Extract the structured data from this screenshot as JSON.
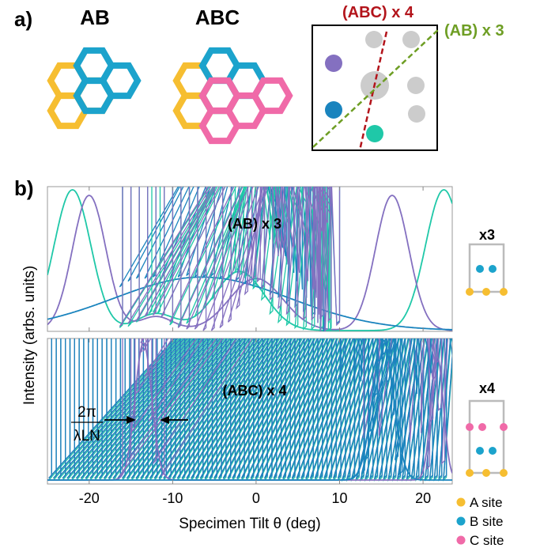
{
  "panel_a": {
    "label": "a)",
    "ab_title": "AB",
    "abc_title": "ABC",
    "box_label_abc": "(ABC) x 4",
    "box_label_ab": "(AB) x 3"
  },
  "panel_b": {
    "label": "b)",
    "top_annotation": "(AB) x 3",
    "bottom_annotation": "(ABC) x 4",
    "width_numerator": "2π",
    "width_denominator": "λLN",
    "x3_label": "x3",
    "x4_label": "x4"
  },
  "legend": {
    "items": [
      {
        "label": "A site",
        "color": "#f6be31"
      },
      {
        "label": "B site",
        "color": "#1ca3cc"
      },
      {
        "label": "C site",
        "color": "#f06aa8"
      }
    ]
  },
  "colors": {
    "A": "#f6be31",
    "B": "#1ca3cc",
    "C": "#f06aa8",
    "purple": "#8470c0",
    "teal": "#1fc8a8",
    "blue": "#1a84be",
    "red_dash": "#b3141b",
    "green_dash": "#6e9e24",
    "gray": "#cccccc"
  },
  "chart_data": {
    "type": "line",
    "xlabel": "Specimen Tilt θ (deg)",
    "ylabel": "Intensity (arbs. units)",
    "xlim": [
      -25,
      23.5
    ],
    "xticks": [
      -20,
      -10,
      0,
      10,
      20
    ],
    "tick_labels": [
      "-20",
      "-10",
      "0",
      "10",
      "20"
    ],
    "panels": [
      {
        "name": "(AB) x 3",
        "ylim": [
          0,
          1
        ],
        "curves": [
          {
            "color": "teal",
            "peaks": [
              [
                -22.0,
                1.0,
                2.2
              ],
              [
                -12.0,
                0.12,
                2.3
              ],
              [
                -2.0,
                0.42,
                3.0
              ],
              [
                22.5,
                1.0,
                2.2
              ]
            ]
          },
          {
            "color": "purple",
            "peaks": [
              [
                -20.0,
                0.96,
                2.0
              ],
              [
                -12.0,
                0.1,
                2.0
              ],
              [
                0.0,
                0.37,
                3.2
              ],
              [
                16.3,
                0.96,
                2.0
              ]
            ]
          },
          {
            "color": "blue",
            "peaks": [
              [
                -6.5,
                0.38,
                10.5
              ]
            ]
          }
        ],
        "points": [
          {
            "color": "blue",
            "x": [
              -16,
              -15,
              -14,
              -13,
              -12,
              -11,
              -10,
              -9,
              -8,
              -7,
              -6,
              -5,
              -4,
              -3,
              -2,
              -1,
              0,
              1,
              2,
              3,
              4,
              5,
              6,
              7,
              8,
              9,
              10
            ],
            "y": [
              0.31,
              0.35,
              0.37,
              0.37,
              0.38,
              0.38,
              0.37,
              0.38,
              0.39,
              0.38,
              0.38,
              0.39,
              0.37,
              0.38,
              0.36,
              0.34,
              0.32,
              0.31,
              0.26,
              0.24,
              0.2,
              0.17,
              0.14,
              0.11,
              0.09,
              0.07,
              0.05
            ]
          },
          {
            "color": "teal",
            "x": [
              -16,
              -15,
              -14,
              -13,
              -12.5,
              -12,
              -11.5,
              -11,
              -10,
              -9,
              -8,
              -7,
              -6,
              -5,
              -4,
              -3,
              -2.5,
              -2,
              -1.5,
              -1,
              0,
              1,
              2,
              3,
              4,
              5,
              6,
              7,
              8,
              9
            ],
            "y": [
              0.02,
              0.03,
              0.06,
              0.1,
              0.12,
              0.13,
              0.12,
              0.1,
              0.04,
              0.03,
              0.05,
              0.1,
              0.16,
              0.22,
              0.3,
              0.37,
              0.4,
              0.43,
              0.4,
              0.38,
              0.3,
              0.22,
              0.12,
              0.06,
              0.04,
              0.02,
              0.01,
              0.01,
              0.01,
              0.0
            ]
          },
          {
            "color": "purple",
            "x": [
              -16,
              -15,
              -14,
              -13,
              -12,
              -11,
              -10,
              -9,
              -8,
              -7,
              -6,
              -5,
              -4,
              -3,
              -2,
              -1,
              -0.5,
              0,
              0.5,
              1,
              2,
              3,
              4,
              5,
              6,
              7,
              8,
              9,
              10
            ],
            "y": [
              0.03,
              0.05,
              0.07,
              0.1,
              0.11,
              0.1,
              0.06,
              0.02,
              0.01,
              0.01,
              0.0,
              0.0,
              0.02,
              0.06,
              0.16,
              0.26,
              0.33,
              0.37,
              0.35,
              0.3,
              0.22,
              0.16,
              0.12,
              0.1,
              0.08,
              0.08,
              0.09,
              0.07,
              0.04
            ]
          }
        ]
      },
      {
        "name": "(ABC) x 4",
        "ylim": [
          0,
          1
        ],
        "curves": [
          {
            "color": "purple",
            "peaks": [
              [
                -13.5,
                0.98,
                1.0
              ],
              [
                21.7,
                0.88,
                0.75
              ]
            ]
          },
          {
            "color": "blue",
            "peaks": [
              [
                15.2,
                1.0,
                1.25
              ]
            ]
          }
        ],
        "points": [
          {
            "color": "purple",
            "x": [
              -16,
              -15,
              -14.5,
              -14,
              -13.7,
              -13.5,
              -13.2,
              -13,
              -12.5,
              -12,
              -11
            ],
            "y": [
              0.03,
              0.14,
              0.35,
              0.62,
              0.9,
              0.98,
              0.92,
              0.74,
              0.42,
              0.12,
              0.03
            ]
          },
          {
            "color": "purple",
            "x": [
              20.8,
              21.2,
              21.5,
              21.8,
              22.2,
              22.6
            ],
            "y": [
              0.08,
              0.42,
              0.72,
              0.83,
              0.5,
              0.12
            ]
          },
          {
            "color": "blue",
            "x": [
              13,
              13.5,
              14,
              14.5,
              15,
              15.3,
              15.6,
              16,
              16.5,
              17,
              17.5
            ],
            "y": [
              0.05,
              0.15,
              0.35,
              0.6,
              0.85,
              1.0,
              0.9,
              0.7,
              0.45,
              0.15,
              0.04
            ]
          }
        ],
        "baseline": [
          {
            "color": "teal",
            "y": 0.0
          },
          {
            "color": "purple",
            "y": 0.005
          },
          {
            "color": "blue",
            "y": 0.0
          }
        ]
      }
    ]
  }
}
